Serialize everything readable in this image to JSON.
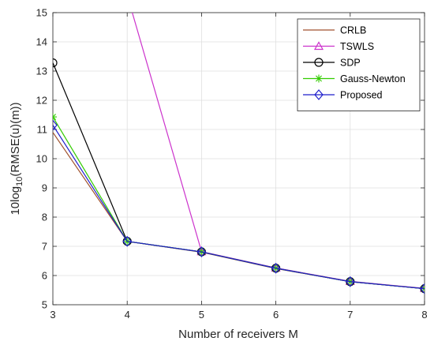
{
  "chart_data": {
    "type": "line",
    "xlabel": "Number of receivers M",
    "ylabel": "10log10(RMSE(u)(m))",
    "ylabel_parts": {
      "prefix": "10log",
      "subscript": "10",
      "suffix": "(RMSE(u)(m))"
    },
    "xlim": [
      3,
      8
    ],
    "ylim": [
      5,
      15
    ],
    "x_ticks": [
      "3",
      "4",
      "5",
      "6",
      "7",
      "8"
    ],
    "y_ticks": [
      "5",
      "6",
      "7",
      "8",
      "9",
      "10",
      "11",
      "12",
      "13",
      "14",
      "15"
    ],
    "grid": true,
    "legend_position": "top-right",
    "x": [
      3,
      4,
      5,
      6,
      7,
      8
    ],
    "series": [
      {
        "name": "CRLB",
        "color": "#a0522d",
        "marker": "none",
        "values": [
          10.9,
          7.17,
          6.8,
          6.24,
          5.79,
          5.55
        ]
      },
      {
        "name": "TSWLS",
        "color": "#cc33cc",
        "marker": "triangle",
        "values": [
          null,
          15.6,
          6.82,
          6.26,
          5.8,
          5.56
        ]
      },
      {
        "name": "SDP",
        "color": "#000000",
        "marker": "circle",
        "values": [
          13.28,
          7.17,
          6.81,
          6.25,
          5.79,
          5.55
        ]
      },
      {
        "name": "Gauss-Newton",
        "color": "#33cc00",
        "marker": "star",
        "values": [
          11.43,
          7.17,
          6.81,
          6.25,
          5.79,
          5.55
        ]
      },
      {
        "name": "Proposed",
        "color": "#1f1fcc",
        "marker": "diamond",
        "values": [
          11.15,
          7.17,
          6.81,
          6.25,
          5.79,
          5.55
        ]
      }
    ]
  }
}
